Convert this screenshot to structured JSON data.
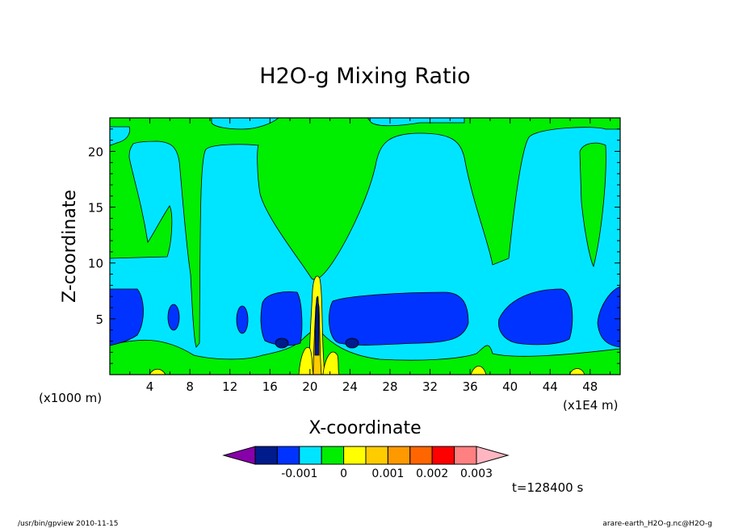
{
  "chart_data": {
    "type": "heatmap",
    "title": "H2O-g Mixing Ratio",
    "xlabel": "X-coordinate",
    "ylabel": "Z-coordinate",
    "y_unit": "(x1000 m)",
    "x_unit": "(x1E4 m)",
    "xlim": [
      0,
      51
    ],
    "ylim": [
      0,
      23
    ],
    "xticks": [
      4,
      8,
      12,
      16,
      20,
      24,
      28,
      32,
      36,
      40,
      44,
      48
    ],
    "yticks": [
      5,
      10,
      15,
      20
    ],
    "time_label": "t=128400 s",
    "colorbar": {
      "colors": [
        "#8800aa",
        "#001b8c",
        "#0033ff",
        "#00e5ff",
        "#00ee00",
        "#ffff00",
        "#ffcc00",
        "#ff9900",
        "#ff6600",
        "#ff0000",
        "#ff8080",
        "#ffb6c1"
      ],
      "tick_labels": [
        "-0.001",
        "0",
        "0.001",
        "0.002",
        "0.003"
      ]
    }
  },
  "footer": {
    "left": "/usr/bin/gpview   2010-11-15",
    "right": "arare-earth_H2O-g.nc@H2O-g"
  }
}
